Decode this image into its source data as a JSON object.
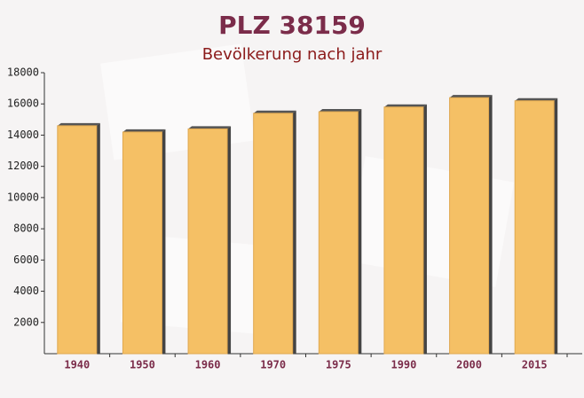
{
  "chart_data": {
    "type": "bar",
    "title": "PLZ 38159",
    "subtitle": "Bevölkerung nach jahr",
    "categories": [
      "1940",
      "1950",
      "1960",
      "1970",
      "1975",
      "1990",
      "2000",
      "2015"
    ],
    "values": [
      14600,
      14200,
      14400,
      15400,
      15500,
      15800,
      16400,
      16200
    ],
    "color": "#f5c065",
    "ylim": [
      0,
      18000
    ],
    "yticks": [
      2000,
      4000,
      6000,
      8000,
      10000,
      12000,
      14000,
      16000,
      18000
    ]
  }
}
